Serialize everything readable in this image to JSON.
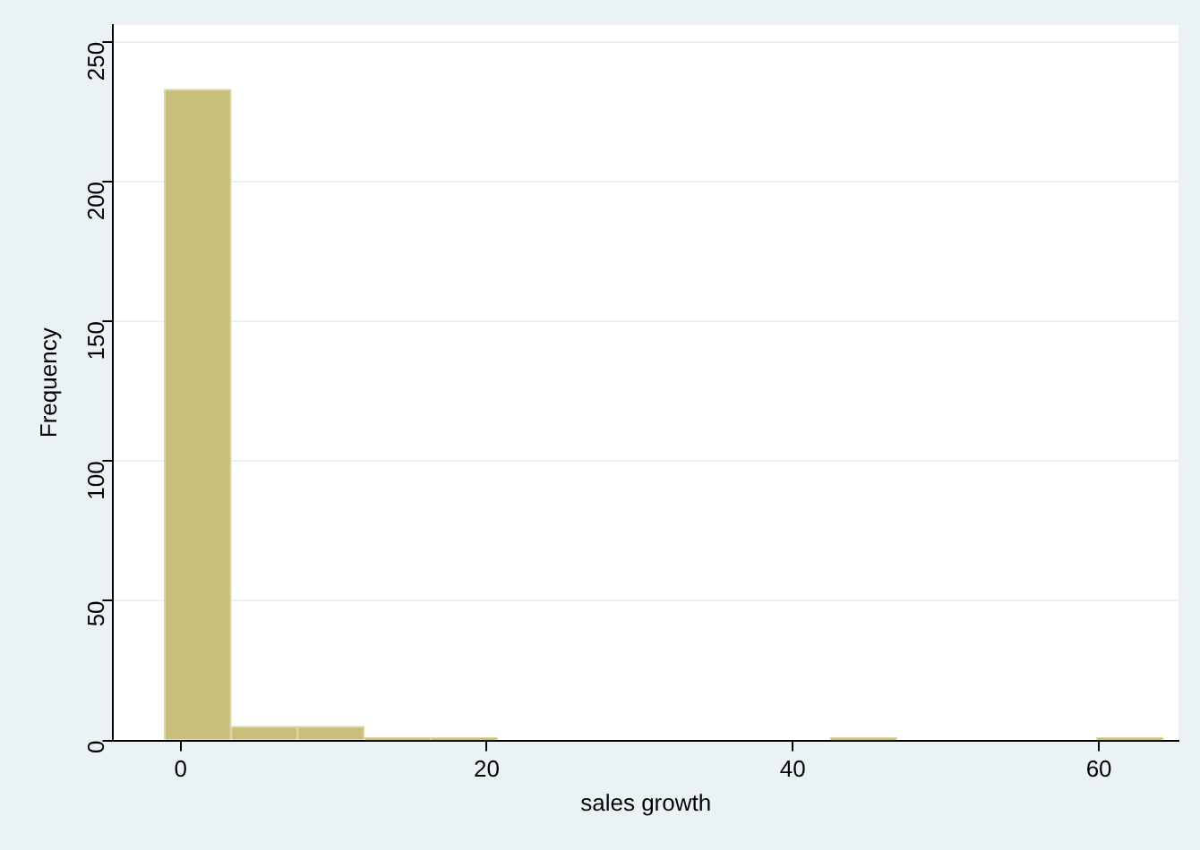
{
  "chart_data": {
    "type": "histogram",
    "xlabel": "sales growth",
    "ylabel": "Frequency",
    "bins": [
      -1.05,
      3.3,
      7.65,
      12.0,
      16.35,
      20.7,
      25.05,
      29.4,
      33.75,
      38.1,
      42.45,
      46.8,
      51.15,
      55.5,
      59.85,
      64.2
    ],
    "values": [
      233,
      5,
      5,
      1,
      1,
      0,
      0,
      0,
      0,
      0,
      1,
      0,
      0,
      0,
      1
    ],
    "color": "#c8bf7c",
    "xlim": [
      -4.4,
      65.2
    ],
    "xticks": [
      0,
      20,
      40,
      60
    ],
    "ylim": [
      0,
      256
    ],
    "yticks": [
      0,
      50,
      100,
      150,
      200,
      250
    ],
    "grid": "y",
    "legend": false
  }
}
